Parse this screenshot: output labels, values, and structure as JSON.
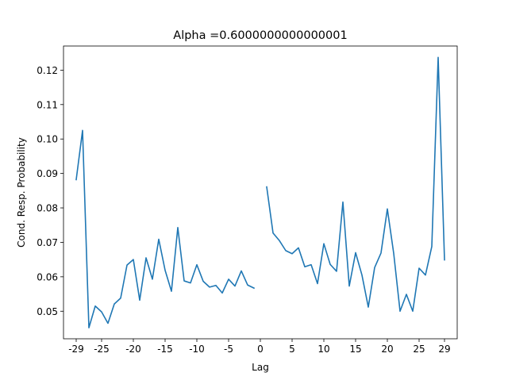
{
  "chart_data": {
    "type": "line",
    "title": "Alpha =0.6000000000000001",
    "xlabel": "Lag",
    "ylabel": "Cond. Resp. Probability",
    "xlim": [
      -31,
      31
    ],
    "ylim": [
      0.042,
      0.127
    ],
    "xticks": [
      -29,
      -25,
      -20,
      -15,
      -10,
      -5,
      0,
      5,
      10,
      15,
      20,
      25,
      29
    ],
    "xtick_labels": [
      "-29",
      "-25",
      "-20",
      "-15",
      "-10",
      "-5",
      "0",
      "5",
      "10",
      "15",
      "20",
      "25",
      "29"
    ],
    "yticks": [
      0.05,
      0.06,
      0.07,
      0.08,
      0.09,
      0.1,
      0.11,
      0.12
    ],
    "ytick_labels": [
      "0.05",
      "0.06",
      "0.07",
      "0.08",
      "0.09",
      "0.10",
      "0.11",
      "0.12"
    ],
    "grid": false,
    "series": [
      {
        "color": "#1f77b4",
        "segments": [
          {
            "x": [
              -29,
              -28,
              -27,
              -26,
              -25,
              -24,
              -23,
              -22,
              -21,
              -20,
              -19,
              -18,
              -17,
              -16,
              -15,
              -14,
              -13,
              -12,
              -11,
              -10,
              -9,
              -8,
              -7,
              -6,
              -5,
              -4,
              -3,
              -2,
              -1
            ],
            "y": [
              0.0882,
              0.1025,
              0.0452,
              0.0515,
              0.0498,
              0.0465,
              0.0521,
              0.0538,
              0.0634,
              0.065,
              0.0532,
              0.0655,
              0.0593,
              0.0709,
              0.0619,
              0.0558,
              0.0743,
              0.0588,
              0.0582,
              0.0635,
              0.0587,
              0.057,
              0.0575,
              0.0553,
              0.0593,
              0.0573,
              0.0617,
              0.0576,
              0.0567
            ]
          },
          {
            "x": [
              1,
              2,
              3,
              4,
              5,
              6,
              7,
              8,
              9,
              10,
              11,
              12,
              13,
              14,
              15,
              16,
              17,
              18,
              19,
              20,
              21,
              22,
              23,
              24,
              25,
              26,
              27,
              28,
              29
            ],
            "y": [
              0.0861,
              0.0727,
              0.0705,
              0.0676,
              0.0667,
              0.0684,
              0.0629,
              0.0635,
              0.058,
              0.0696,
              0.0636,
              0.0616,
              0.0817,
              0.0573,
              0.067,
              0.0605,
              0.0512,
              0.0627,
              0.0669,
              0.0797,
              0.0668,
              0.05,
              0.0549,
              0.05,
              0.0625,
              0.0605,
              0.0688,
              0.1237,
              0.0649
            ]
          }
        ]
      }
    ]
  }
}
